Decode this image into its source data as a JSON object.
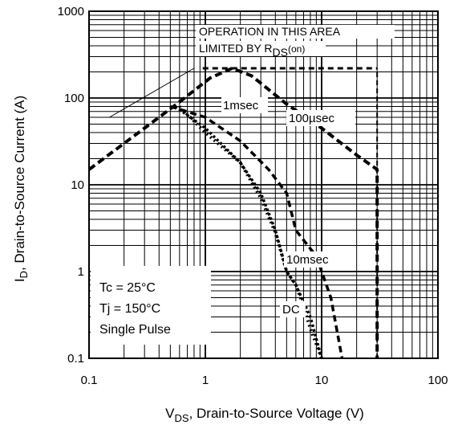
{
  "chart_data": {
    "type": "line",
    "title": "",
    "x_scale": "log",
    "y_scale": "log",
    "xlim": [
      0.1,
      100
    ],
    "ylim": [
      0.1,
      1000
    ],
    "x_ticks": [
      "0.1",
      "1",
      "10",
      "100"
    ],
    "y_ticks": [
      "0.1",
      "1",
      "10",
      "100",
      "1000"
    ],
    "xlabel": {
      "main": "V",
      "sub": "DS",
      "rest": ", Drain-to-Source Voltage (V)"
    },
    "ylabel": {
      "main": "I",
      "sub": "D",
      "rest": ", Drain-to-Source Current (A)"
    },
    "grid": true,
    "limit_note": {
      "line1": "OPERATION IN THIS AREA",
      "line2_main": "LIMITED BY R",
      "line2_sub": "DS",
      "line2_paren": "(on)"
    },
    "conditions": [
      "Tc = 25°C",
      "Tj = 150°C",
      "Single Pulse"
    ],
    "current_limit": {
      "y": 220,
      "x_range": [
        0.95,
        30
      ]
    },
    "voltage_limit": {
      "x": 30,
      "y_range": [
        0.1,
        220
      ]
    },
    "rds_on_line": {
      "points": [
        [
          0.15,
          60
        ],
        [
          0.8,
          220
        ]
      ]
    },
    "series": [
      {
        "name": "100µsec",
        "points": [
          [
            0.1,
            15
          ],
          [
            0.3,
            45
          ],
          [
            0.6,
            90
          ],
          [
            1.1,
            170
          ],
          [
            1.7,
            220
          ],
          [
            2.5,
            180
          ],
          [
            5,
            85
          ],
          [
            10,
            45
          ],
          [
            20,
            22
          ],
          [
            30,
            15
          ],
          [
            30,
            0.1
          ]
        ]
      },
      {
        "name": "1msec",
        "points": [
          [
            0.5,
            80
          ],
          [
            1,
            60
          ],
          [
            2,
            32
          ],
          [
            3.5,
            15
          ],
          [
            5,
            8
          ],
          [
            6,
            3
          ],
          [
            9,
            1.5
          ],
          [
            10,
            1.0
          ],
          [
            12,
            0.5
          ],
          [
            15,
            0.1
          ]
        ]
      },
      {
        "name": "10msec",
        "points": [
          [
            0.55,
            80
          ],
          [
            1,
            45
          ],
          [
            2,
            18
          ],
          [
            3,
            8
          ],
          [
            4,
            3
          ],
          [
            5,
            1
          ],
          [
            6,
            0.7
          ],
          [
            8,
            0.3
          ],
          [
            10,
            0.1
          ]
        ]
      },
      {
        "name": "DC",
        "points": [
          [
            0.6,
            80
          ],
          [
            1,
            40
          ],
          [
            2,
            18
          ],
          [
            3,
            7
          ],
          [
            4,
            2.8
          ],
          [
            5,
            1
          ],
          [
            6,
            0.7
          ],
          [
            7,
            0.4
          ],
          [
            8,
            0.22
          ],
          [
            10,
            0.1
          ]
        ]
      }
    ]
  }
}
